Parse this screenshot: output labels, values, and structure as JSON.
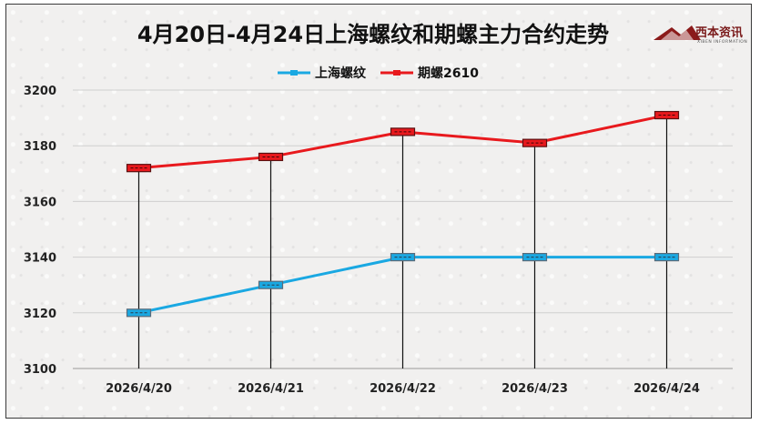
{
  "chart_data": {
    "type": "line",
    "title": "4月20日-4月24日上海螺纹和期螺主力合约走势",
    "categories": [
      "2026/4/20",
      "2026/4/21",
      "2026/4/22",
      "2026/4/23",
      "2026/4/24"
    ],
    "series": [
      {
        "name": "上海螺纹",
        "values": [
          3120,
          3130,
          3140,
          3140,
          3140
        ],
        "color": "#1aa8e2"
      },
      {
        "name": "期螺2610",
        "values": [
          3172,
          3176,
          3185,
          3181,
          3191
        ],
        "color": "#e8191d"
      }
    ],
    "ylim": [
      3100,
      3200
    ],
    "yticks": [
      3100,
      3120,
      3140,
      3160,
      3180,
      3200
    ],
    "grid": true,
    "legend": "top-center",
    "drop_lines": true,
    "xlabel": "",
    "ylabel": ""
  },
  "logo": {
    "text": "西本资讯",
    "subtext": "XIBEN INFORMATION"
  }
}
